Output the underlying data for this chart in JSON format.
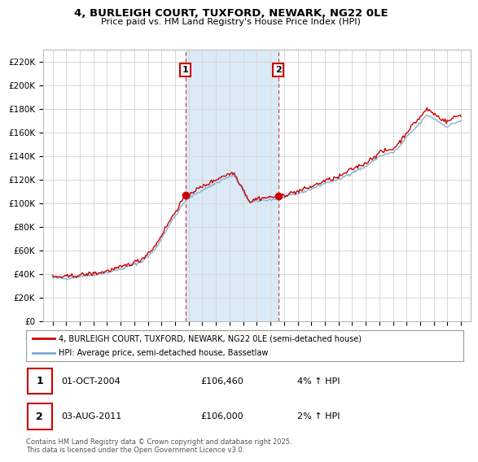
{
  "title_line1": "4, BURLEIGH COURT, TUXFORD, NEWARK, NG22 0LE",
  "title_line2": "Price paid vs. HM Land Registry's House Price Index (HPI)",
  "background_color": "#ffffff",
  "grid_color": "#d8d8d8",
  "shade_color": "#dbeaf7",
  "red_line_color": "#cc0000",
  "blue_line_color": "#7aadcf",
  "legend_label_red": "4, BURLEIGH COURT, TUXFORD, NEWARK, NG22 0LE (semi-detached house)",
  "legend_label_blue": "HPI: Average price, semi-detached house, Bassetlaw",
  "annotation1_label": "1",
  "annotation1_date": "01-OCT-2004",
  "annotation1_price": "£106,460",
  "annotation1_hpi": "4% ↑ HPI",
  "annotation2_label": "2",
  "annotation2_date": "03-AUG-2011",
  "annotation2_price": "£106,000",
  "annotation2_hpi": "2% ↑ HPI",
  "footer": "Contains HM Land Registry data © Crown copyright and database right 2025.\nThis data is licensed under the Open Government Licence v3.0.",
  "ylim": [
    0,
    230000
  ],
  "yticks": [
    0,
    20000,
    40000,
    60000,
    80000,
    100000,
    120000,
    140000,
    160000,
    180000,
    200000,
    220000
  ],
  "ytick_labels": [
    "£0",
    "£20K",
    "£40K",
    "£60K",
    "£80K",
    "£100K",
    "£120K",
    "£140K",
    "£160K",
    "£180K",
    "£200K",
    "£220K"
  ],
  "sale1_x": 2004.75,
  "sale1_y": 106460,
  "sale2_x": 2011.58,
  "sale2_y": 106000,
  "shade_xmin": 2004.75,
  "shade_xmax": 2011.58,
  "xlim_min": 1994.3,
  "xlim_max": 2025.7,
  "xtick_start": 1995,
  "xtick_end": 2025
}
